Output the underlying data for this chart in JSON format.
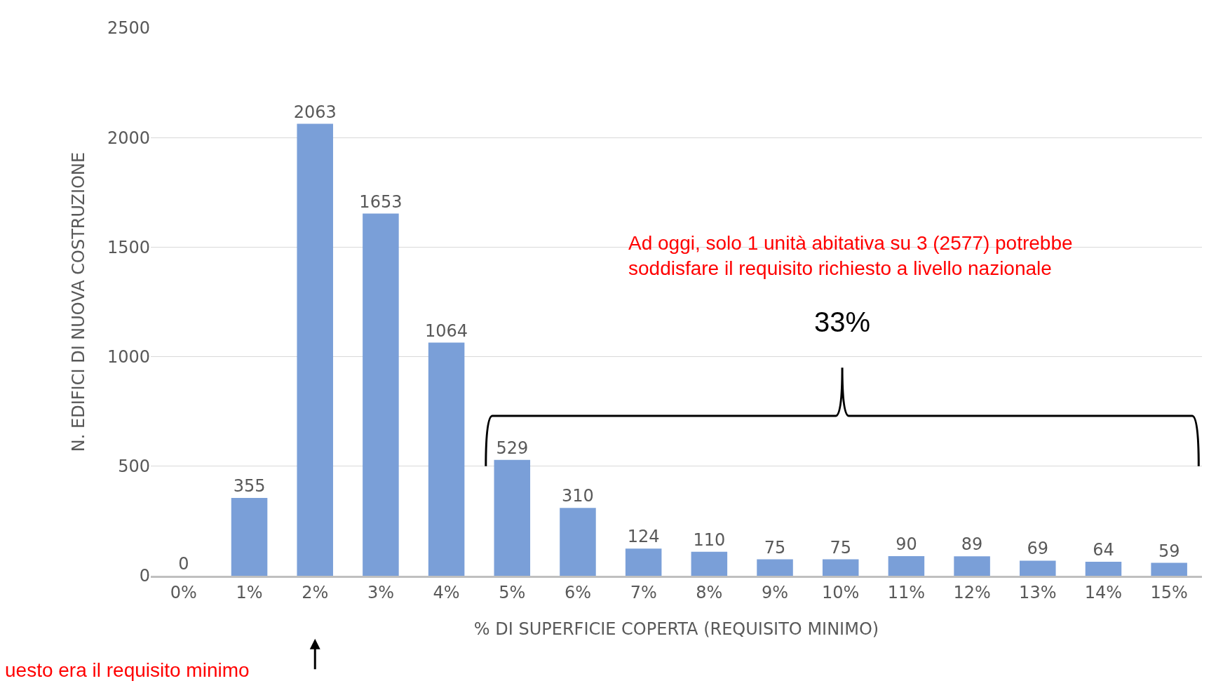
{
  "chart_data": {
    "type": "bar",
    "xlabel": "% DI SUPERFICIE COPERTA (REQUISITO MINIMO)",
    "ylabel": "N. EDIFICI DI NUOVA COSTRUZIONE",
    "categories": [
      "0%",
      "1%",
      "2%",
      "3%",
      "4%",
      "5%",
      "6%",
      "7%",
      "8%",
      "9%",
      "10%",
      "11%",
      "12%",
      "13%",
      "14%",
      "15%"
    ],
    "values": [
      0,
      355,
      2063,
      1653,
      1064,
      529,
      310,
      124,
      110,
      75,
      75,
      90,
      89,
      69,
      64,
      59
    ],
    "color": "#7a9fd8",
    "ylim": [
      0,
      2500
    ],
    "yticks": [
      0,
      500,
      1000,
      1500,
      2000,
      2500
    ],
    "grid": "y",
    "data_labels": true,
    "annotations": [
      "Ad oggi, solo 1 unità abitativa su 3 (2577) potrebbe\nsoddisfare il requisito richiesto a livello nazionale",
      "33%",
      "uesto era il requisito minimo"
    ]
  }
}
